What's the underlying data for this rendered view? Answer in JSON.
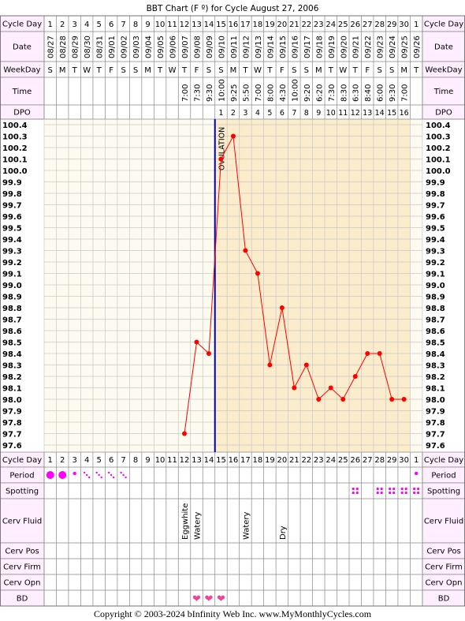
{
  "title": "BBT Chart (F º) for Cycle August 27, 2006",
  "footer": "Copyright © 2003-2024 bInfinity Web Inc.     www.MyMonthlyCycles.com",
  "row_labels": {
    "cycle_day": "Cycle Day",
    "date": "Date",
    "weekday": "WeekDay",
    "time": "Time",
    "dpo": "DPO",
    "period": "Period",
    "spotting": "Spotting",
    "cerv_fluid": "Cerv Fluid",
    "cerv_pos": "Cerv Pos",
    "cerv_firm": "Cerv Firm",
    "cerv_opn": "Cerv Opn",
    "bd": "BD"
  },
  "ovulation_label": "OVULATION",
  "colors": {
    "preovulation_bg": "#fdfbf0",
    "postovulation_bg": "#fbeccc",
    "ovulation_line": "#0000aa",
    "temp_line": "#ff0000",
    "period_dot": "#ff00ff",
    "heart": "#ee4499",
    "label_bg": "#ffeeff"
  },
  "cycle_days": [
    "1",
    "2",
    "3",
    "4",
    "5",
    "6",
    "7",
    "8",
    "9",
    "10",
    "11",
    "12",
    "13",
    "14",
    "15",
    "16",
    "17",
    "18",
    "19",
    "20",
    "21",
    "22",
    "23",
    "24",
    "25",
    "26",
    "27",
    "28",
    "29",
    "30",
    "1"
  ],
  "dates": [
    "08/27",
    "08/28",
    "08/29",
    "08/30",
    "08/31",
    "09/01",
    "09/02",
    "09/03",
    "09/04",
    "09/05",
    "09/06",
    "09/07",
    "09/08",
    "09/09",
    "09/10",
    "09/11",
    "09/12",
    "09/13",
    "09/14",
    "09/15",
    "09/16",
    "09/17",
    "09/18",
    "09/19",
    "09/20",
    "09/21",
    "09/22",
    "09/23",
    "09/24",
    "09/25",
    "09/26"
  ],
  "weekdays": [
    "S",
    "M",
    "T",
    "W",
    "T",
    "F",
    "S",
    "S",
    "M",
    "T",
    "W",
    "T",
    "F",
    "S",
    "S",
    "M",
    "T",
    "W",
    "T",
    "F",
    "S",
    "S",
    "M",
    "T",
    "W",
    "T",
    "F",
    "S",
    "S",
    "M",
    "T"
  ],
  "times": [
    "",
    "",
    "",
    "",
    "",
    "",
    "",
    "",
    "",
    "",
    "",
    "7:00",
    "7:30",
    "9:30",
    "10:00",
    "9:25",
    "5:50",
    "7:00",
    "8:00",
    "4:30",
    "10:00",
    "9:20",
    "6:20",
    "7:30",
    "8:30",
    "6:30",
    "8:40",
    "6:00",
    "9:30",
    "7:00",
    ""
  ],
  "dpo": [
    "",
    "",
    "",
    "",
    "",
    "",
    "",
    "",
    "",
    "",
    "",
    "",
    "",
    "",
    "1",
    "2",
    "3",
    "4",
    "5",
    "6",
    "7",
    "8",
    "9",
    "10",
    "11",
    "12",
    "13",
    "14",
    "15",
    "16",
    ""
  ],
  "period": [
    "heavy",
    "heavy",
    "light",
    "spotting",
    "spotting",
    "spotting",
    "spotting",
    "",
    "",
    "",
    "",
    "",
    "",
    "",
    "",
    "",
    "",
    "",
    "",
    "",
    "",
    "",
    "",
    "",
    "",
    "",
    "",
    "",
    "",
    "",
    "light"
  ],
  "spotting": [
    "",
    "",
    "",
    "",
    "",
    "",
    "",
    "",
    "",
    "",
    "",
    "",
    "",
    "",
    "",
    "",
    "",
    "",
    "",
    "",
    "",
    "",
    "",
    "",
    "",
    "spot",
    "",
    "spot",
    "spot",
    "spot",
    "spot"
  ],
  "cerv_fluid": [
    "",
    "",
    "",
    "",
    "",
    "",
    "",
    "",
    "",
    "",
    "",
    "Eggwhite",
    "Watery",
    "",
    "",
    "",
    "Watery",
    "",
    "",
    "Dry",
    "",
    "",
    "",
    "",
    "",
    "",
    "",
    "",
    "",
    "",
    ""
  ],
  "bd": [
    "",
    "",
    "",
    "",
    "",
    "",
    "",
    "",
    "",
    "",
    "",
    "",
    "heart",
    "heart",
    "heart",
    "",
    "",
    "",
    "",
    "",
    "",
    "",
    "",
    "",
    "",
    "",
    "",
    "",
    "",
    "",
    ""
  ],
  "chart_data": {
    "type": "line",
    "title": "BBT Chart (F º) for Cycle August 27, 2006",
    "y_ticks": [
      "100.4",
      "100.3",
      "100.2",
      "100.1",
      "100.0",
      "99.9",
      "99.8",
      "99.7",
      "99.6",
      "99.5",
      "99.4",
      "99.3",
      "99.2",
      "99.1",
      "99.0",
      "98.9",
      "98.8",
      "98.7",
      "98.6",
      "98.5",
      "98.4",
      "98.3",
      "98.2",
      "98.1",
      "98.0",
      "97.9",
      "97.8",
      "97.7",
      "97.6"
    ],
    "ylim": [
      97.6,
      100.4
    ],
    "x": [
      "1",
      "2",
      "3",
      "4",
      "5",
      "6",
      "7",
      "8",
      "9",
      "10",
      "11",
      "12",
      "13",
      "14",
      "15",
      "16",
      "17",
      "18",
      "19",
      "20",
      "21",
      "22",
      "23",
      "24",
      "25",
      "26",
      "27",
      "28",
      "29",
      "30",
      "1"
    ],
    "series": [
      {
        "values": [
          null,
          null,
          null,
          null,
          null,
          null,
          null,
          null,
          null,
          null,
          null,
          97.7,
          98.5,
          98.4,
          100.1,
          100.3,
          99.3,
          99.1,
          98.3,
          98.8,
          98.1,
          98.3,
          98.0,
          98.1,
          98.0,
          98.2,
          98.4,
          98.4,
          98.0,
          98.0,
          null
        ]
      }
    ],
    "ovulation_day": 14,
    "grid": true
  }
}
